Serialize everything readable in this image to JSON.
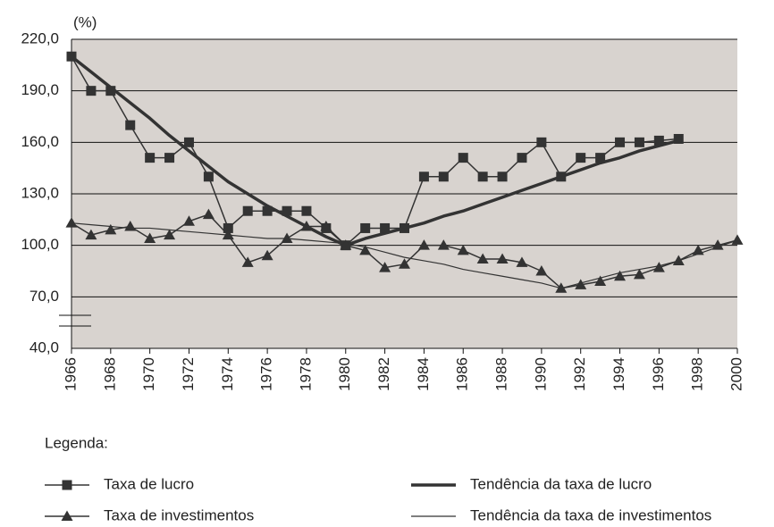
{
  "chart_data": {
    "type": "line",
    "y_label": "(%)",
    "legend_title": "Legenda:",
    "x": [
      1966,
      1967,
      1968,
      1969,
      1970,
      1971,
      1972,
      1973,
      1974,
      1975,
      1976,
      1977,
      1978,
      1979,
      1980,
      1981,
      1982,
      1983,
      1984,
      1985,
      1986,
      1987,
      1988,
      1989,
      1990,
      1991,
      1992,
      1993,
      1994,
      1995,
      1996,
      1997,
      1998,
      1999,
      2000
    ],
    "xlim": [
      1966,
      2000
    ],
    "xticks": [
      1966,
      1968,
      1970,
      1972,
      1974,
      1976,
      1978,
      1980,
      1982,
      1984,
      1986,
      1988,
      1990,
      1992,
      1994,
      1996,
      1998,
      2000
    ],
    "ylim": [
      40,
      220
    ],
    "yticks": [
      {
        "value": 40,
        "label": "40,0"
      },
      {
        "value": 70,
        "label": "70,0"
      },
      {
        "value": 100,
        "label": "100,0"
      },
      {
        "value": 130,
        "label": "130,0"
      },
      {
        "value": 160,
        "label": "160,0"
      },
      {
        "value": 190,
        "label": "190,0"
      },
      {
        "value": 220,
        "label": "220,0"
      }
    ],
    "grid": true,
    "background": "#d8d3cf",
    "series": [
      {
        "name": "Taxa de lucro",
        "color": "#333333",
        "marker": "square",
        "values": [
          210,
          190,
          190,
          170,
          151,
          151,
          160,
          140,
          110,
          120,
          120,
          120,
          120,
          110,
          100,
          110,
          110,
          110,
          140,
          140,
          151,
          140,
          140,
          151,
          160,
          140,
          151,
          151,
          160,
          160,
          161,
          162,
          null,
          null,
          null
        ]
      },
      {
        "name": "Taxa de investimentos",
        "color": "#333333",
        "marker": "triangle",
        "values": [
          113,
          106,
          109,
          111,
          104,
          106,
          114,
          118,
          106,
          90,
          94,
          104,
          111,
          111,
          100,
          97,
          87,
          89,
          100,
          100,
          97,
          92,
          92,
          90,
          85,
          75,
          77,
          79,
          82,
          83,
          87,
          91,
          97,
          100,
          103
        ]
      },
      {
        "name": "Tendência da taxa de lucro",
        "color": "#333333",
        "marker": "none",
        "values": [
          210,
          201,
          192,
          183,
          174,
          164,
          155,
          146,
          137,
          130,
          123,
          117,
          111,
          105,
          100,
          104,
          107,
          110,
          113,
          117,
          120,
          124,
          128,
          132,
          136,
          140,
          144,
          148,
          151,
          155,
          158,
          161,
          null,
          null,
          null
        ]
      },
      {
        "name": "Tendência da taxa de investimentos",
        "color": "#333333",
        "marker": "none",
        "values": [
          113,
          112,
          111,
          110,
          110,
          109,
          108,
          107,
          106,
          105,
          104,
          104,
          103,
          102,
          101,
          99,
          96,
          93,
          91,
          89,
          86,
          84,
          82,
          80,
          78,
          75,
          78,
          81,
          84,
          86,
          88,
          91,
          95,
          99,
          103
        ]
      }
    ]
  }
}
